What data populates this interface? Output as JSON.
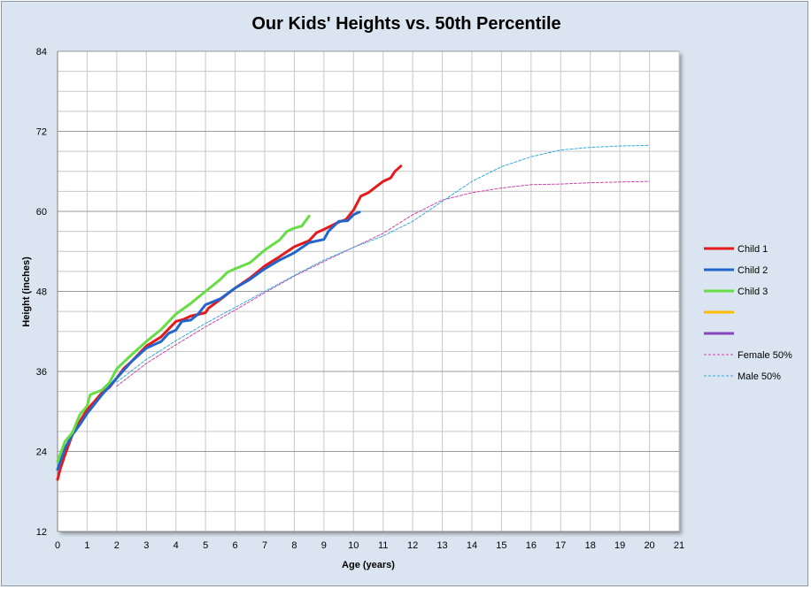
{
  "chart_data": {
    "type": "line",
    "title": "Our Kids' Heights vs. 50th Percentile",
    "xlabel": "Age (years)",
    "ylabel": "Height (inches)",
    "xlim": [
      0,
      21
    ],
    "ylim": [
      12,
      84
    ],
    "xticks": [
      0,
      1,
      2,
      3,
      4,
      5,
      6,
      7,
      8,
      9,
      10,
      11,
      12,
      13,
      14,
      15,
      16,
      17,
      18,
      19,
      20,
      21
    ],
    "yticks": [
      12,
      24,
      36,
      48,
      60,
      72,
      84
    ],
    "grid": true,
    "legend_position": "right",
    "series": [
      {
        "name": "Child 1",
        "color": "#e41a1c",
        "style": "solid",
        "points": [
          [
            0,
            19.8
          ],
          [
            0.1,
            21.5
          ],
          [
            0.25,
            23.5
          ],
          [
            0.5,
            26.5
          ],
          [
            0.75,
            28.5
          ],
          [
            1,
            30.3
          ],
          [
            1.25,
            31.5
          ],
          [
            1.5,
            32.8
          ],
          [
            1.75,
            33.6
          ],
          [
            2,
            35
          ],
          [
            2.25,
            36.5
          ],
          [
            2.5,
            37.5
          ],
          [
            3,
            39.8
          ],
          [
            3.5,
            41.2
          ],
          [
            4,
            43.5
          ],
          [
            4.25,
            43.8
          ],
          [
            4.5,
            44.3
          ],
          [
            5,
            44.8
          ],
          [
            5.1,
            45.5
          ],
          [
            5.5,
            46.8
          ],
          [
            6,
            48.5
          ],
          [
            6.5,
            50
          ],
          [
            7,
            51.8
          ],
          [
            7.5,
            53.2
          ],
          [
            8,
            54.7
          ],
          [
            8.5,
            55.6
          ],
          [
            8.75,
            56.8
          ],
          [
            9,
            57.3
          ],
          [
            9.5,
            58.4
          ],
          [
            9.75,
            58.8
          ],
          [
            10,
            60.2
          ],
          [
            10.25,
            62.3
          ],
          [
            10.5,
            62.8
          ],
          [
            11,
            64.5
          ],
          [
            11.25,
            65
          ],
          [
            11.4,
            66
          ],
          [
            11.6,
            66.8
          ]
        ]
      },
      {
        "name": "Child 2",
        "color": "#2266cc",
        "style": "solid",
        "points": [
          [
            0,
            21.3
          ],
          [
            0.25,
            24.5
          ],
          [
            0.5,
            26.5
          ],
          [
            0.75,
            28
          ],
          [
            1,
            29.7
          ],
          [
            1.5,
            32.5
          ],
          [
            2,
            35
          ],
          [
            2.5,
            37.5
          ],
          [
            3,
            39.5
          ],
          [
            3.5,
            40.5
          ],
          [
            3.75,
            41.7
          ],
          [
            4,
            42.2
          ],
          [
            4.2,
            43.5
          ],
          [
            4.5,
            43.7
          ],
          [
            4.75,
            44.6
          ],
          [
            5,
            46
          ],
          [
            5.5,
            46.9
          ],
          [
            6,
            48.5
          ],
          [
            6.5,
            49.8
          ],
          [
            7,
            51.4
          ],
          [
            7.5,
            52.7
          ],
          [
            8,
            53.8
          ],
          [
            8.5,
            55.3
          ],
          [
            9,
            55.8
          ],
          [
            9.15,
            57
          ],
          [
            9.5,
            58.5
          ],
          [
            9.8,
            58.6
          ],
          [
            10,
            59.5
          ],
          [
            10.2,
            59.9
          ]
        ]
      },
      {
        "name": "Child 3",
        "color": "#66dd44",
        "style": "solid",
        "points": [
          [
            0,
            22.5
          ],
          [
            0.25,
            25.5
          ],
          [
            0.5,
            26.8
          ],
          [
            0.75,
            29.5
          ],
          [
            1,
            30.8
          ],
          [
            1.1,
            32.5
          ],
          [
            1.5,
            33.2
          ],
          [
            1.75,
            34.3
          ],
          [
            2,
            36.4
          ],
          [
            2.5,
            38.5
          ],
          [
            3,
            40.5
          ],
          [
            3.5,
            42.3
          ],
          [
            4,
            44.6
          ],
          [
            4.5,
            46.2
          ],
          [
            5,
            48
          ],
          [
            5.5,
            49.8
          ],
          [
            5.75,
            50.9
          ],
          [
            6,
            51.4
          ],
          [
            6.5,
            52.3
          ],
          [
            7,
            54.2
          ],
          [
            7.5,
            55.7
          ],
          [
            7.75,
            57
          ],
          [
            8,
            57.5
          ],
          [
            8.25,
            57.8
          ],
          [
            8.5,
            59.3
          ]
        ]
      },
      {
        "name": "",
        "color": "#ffbb00",
        "style": "solid",
        "points": []
      },
      {
        "name": "",
        "color": "#8844bb",
        "style": "solid",
        "points": []
      },
      {
        "name": "Female 50%",
        "color": "#cc44aa",
        "style": "dashed",
        "points": [
          [
            2,
            33.8
          ],
          [
            3,
            37.2
          ],
          [
            4,
            40
          ],
          [
            5,
            42.7
          ],
          [
            6,
            45.2
          ],
          [
            7,
            47.8
          ],
          [
            8,
            50.3
          ],
          [
            9,
            52.5
          ],
          [
            10,
            54.6
          ],
          [
            11,
            56.7
          ],
          [
            12,
            59.5
          ],
          [
            13,
            61.7
          ],
          [
            14,
            62.8
          ],
          [
            15,
            63.5
          ],
          [
            16,
            64
          ],
          [
            17,
            64.1
          ],
          [
            18,
            64.3
          ],
          [
            19,
            64.4
          ],
          [
            20,
            64.5
          ]
        ]
      },
      {
        "name": "Male 50%",
        "color": "#33aadd",
        "style": "dashed",
        "points": [
          [
            2,
            34.4
          ],
          [
            3,
            37.8
          ],
          [
            4,
            40.6
          ],
          [
            5,
            43.2
          ],
          [
            6,
            45.6
          ],
          [
            7,
            48
          ],
          [
            8,
            50.4
          ],
          [
            9,
            52.7
          ],
          [
            10,
            54.6
          ],
          [
            11,
            56.3
          ],
          [
            12,
            58.5
          ],
          [
            13,
            61.5
          ],
          [
            14,
            64.5
          ],
          [
            15,
            66.7
          ],
          [
            16,
            68.2
          ],
          [
            17,
            69.2
          ],
          [
            18,
            69.6
          ],
          [
            19,
            69.8
          ],
          [
            20,
            69.9
          ]
        ]
      }
    ]
  }
}
